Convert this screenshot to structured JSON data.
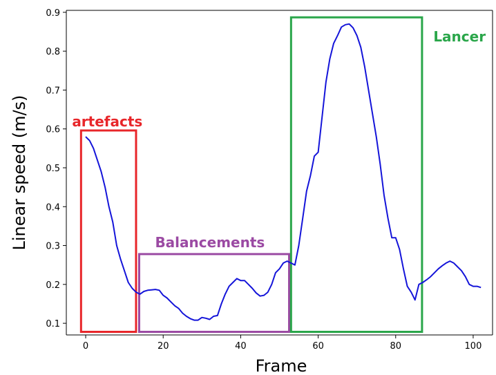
{
  "chart_data": {
    "type": "line",
    "title": "",
    "xlabel": "Frame",
    "ylabel": "Linear speed (m/s)",
    "xlim": [
      -5,
      105
    ],
    "ylim": [
      0.07,
      0.905
    ],
    "xticks": [
      0,
      20,
      40,
      60,
      80,
      100
    ],
    "yticks": [
      0.1,
      0.2,
      0.3,
      0.4,
      0.5,
      0.6,
      0.7,
      0.8,
      0.9
    ],
    "grid": false,
    "series_color": "#1414d9",
    "series": [
      {
        "x": [
          0,
          1,
          2,
          3,
          4,
          5,
          6,
          7,
          8,
          9,
          10,
          11,
          12,
          13,
          14,
          15,
          16,
          17,
          18,
          19,
          20,
          21,
          22,
          23,
          24,
          25,
          26,
          27,
          28,
          29,
          30,
          31,
          32,
          33,
          34,
          35,
          36,
          37,
          38,
          39,
          40,
          41,
          42,
          43,
          44,
          45,
          46,
          47,
          48,
          49,
          50,
          51,
          52,
          53,
          54,
          55,
          56,
          57,
          58,
          59,
          60,
          61,
          62,
          63,
          64,
          65,
          66,
          67,
          68,
          69,
          70,
          71,
          72,
          73,
          74,
          75,
          76,
          77,
          78,
          79,
          80,
          81,
          82,
          83,
          84,
          85,
          86,
          87,
          88,
          89,
          90,
          91,
          92,
          93,
          94,
          95,
          96,
          97,
          98,
          99,
          100,
          101,
          102
        ],
        "values": [
          0.58,
          0.57,
          0.55,
          0.52,
          0.49,
          0.45,
          0.4,
          0.36,
          0.3,
          0.265,
          0.235,
          0.205,
          0.19,
          0.18,
          0.175,
          0.182,
          0.185,
          0.186,
          0.187,
          0.185,
          0.172,
          0.165,
          0.155,
          0.145,
          0.138,
          0.126,
          0.118,
          0.112,
          0.108,
          0.108,
          0.115,
          0.113,
          0.11,
          0.118,
          0.12,
          0.15,
          0.175,
          0.195,
          0.205,
          0.215,
          0.21,
          0.21,
          0.2,
          0.19,
          0.178,
          0.17,
          0.172,
          0.18,
          0.2,
          0.23,
          0.24,
          0.255,
          0.26,
          0.255,
          0.25,
          0.3,
          0.37,
          0.44,
          0.48,
          0.53,
          0.54,
          0.63,
          0.72,
          0.78,
          0.82,
          0.84,
          0.862,
          0.868,
          0.87,
          0.86,
          0.84,
          0.81,
          0.76,
          0.7,
          0.64,
          0.58,
          0.51,
          0.43,
          0.37,
          0.32,
          0.32,
          0.29,
          0.24,
          0.195,
          0.18,
          0.16,
          0.2,
          0.205,
          0.212,
          0.22,
          0.23,
          0.24,
          0.248,
          0.255,
          0.26,
          0.255,
          0.245,
          0.235,
          0.22,
          0.2,
          0.195,
          0.195,
          0.192
        ]
      }
    ],
    "annotations": [
      {
        "label": "artefacts",
        "color": "#e8262a",
        "x_range": [
          -1.2,
          13
        ],
        "y_range": [
          0.078,
          0.596
        ]
      },
      {
        "label": "Balancements",
        "color": "#9b4aa3",
        "x_range": [
          13.8,
          52.5
        ],
        "y_range": [
          0.078,
          0.278
        ]
      },
      {
        "label": "Lancer",
        "color": "#2aa64a",
        "x_range": [
          53,
          86.8
        ],
        "y_range": [
          0.078,
          0.887
        ]
      }
    ]
  }
}
